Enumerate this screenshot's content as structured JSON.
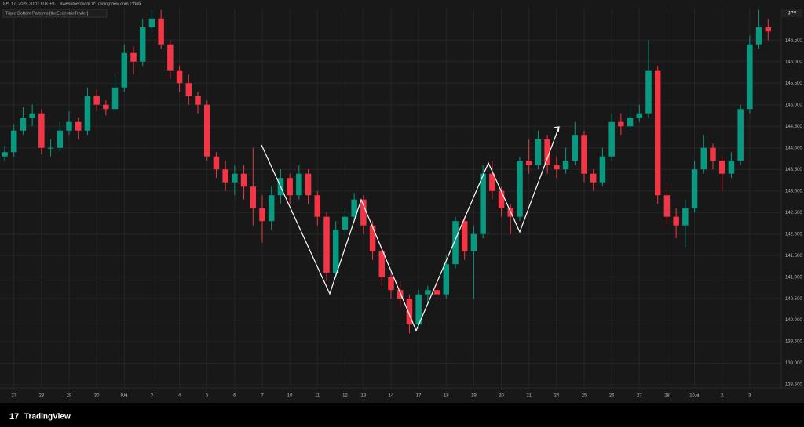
{
  "chart_data": {
    "type": "candlestick",
    "header": "8月 17, 2025 20:11 UTC+9、 awesomefoxcat がTradingView.comで作成",
    "indicator": "Triple Bottom Patterns [theEccentricTrader]",
    "currency": "JPY",
    "brand": "TradingView",
    "up_color": "#089981",
    "down_color": "#f23645",
    "grid": true,
    "categories": [
      null,
      "27",
      null,
      null,
      "28",
      null,
      null,
      "29",
      null,
      null,
      "30",
      null,
      null,
      "9月",
      null,
      null,
      "3",
      null,
      null,
      "4",
      null,
      null,
      "5",
      null,
      null,
      "6",
      null,
      null,
      "7",
      null,
      null,
      "10",
      null,
      null,
      "11",
      null,
      null,
      "12",
      null,
      "13",
      null,
      null,
      "14",
      null,
      null,
      "17",
      null,
      null,
      "18",
      null,
      null,
      "19",
      null,
      null,
      "20",
      null,
      null,
      "21",
      null,
      null,
      "24",
      null,
      null,
      "25",
      null,
      null,
      "26",
      null,
      null,
      "27",
      null,
      null,
      "28",
      null,
      null,
      "10月",
      null,
      null,
      "2",
      null,
      null,
      "3",
      null,
      null
    ],
    "open": [
      143.8,
      143.9,
      144.4,
      144.7,
      144.8,
      144.0,
      144.0,
      144.4,
      144.6,
      144.4,
      145.2,
      145.0,
      144.9,
      145.4,
      146.2,
      146.0,
      146.8,
      147.0,
      146.4,
      145.8,
      145.5,
      145.2,
      145.0,
      143.8,
      143.5,
      143.2,
      143.4,
      143.1,
      142.6,
      142.3,
      142.9,
      143.3,
      142.9,
      143.4,
      142.9,
      142.4,
      141.1,
      142.1,
      142.4,
      142.8,
      142.2,
      141.6,
      141.0,
      140.7,
      140.5,
      139.9,
      140.6,
      140.7,
      140.6,
      141.3,
      142.3,
      141.6,
      142.0,
      143.4,
      143.0,
      142.6,
      142.4,
      143.7,
      143.6,
      144.2,
      143.6,
      143.5,
      143.7,
      144.3,
      143.4,
      143.2,
      143.8,
      144.6,
      144.5,
      144.7,
      144.8,
      145.8,
      142.9,
      142.4,
      142.2,
      142.6,
      143.5,
      144.0,
      143.7,
      143.4,
      143.7,
      144.9,
      146.4,
      146.8
    ],
    "high": [
      144.05,
      144.55,
      144.95,
      145.0,
      144.9,
      144.2,
      144.6,
      144.85,
      144.7,
      145.4,
      145.35,
      145.1,
      145.7,
      146.4,
      146.35,
      147.0,
      147.2,
      147.2,
      146.5,
      145.9,
      145.7,
      145.3,
      145.1,
      143.9,
      143.7,
      143.6,
      143.6,
      144.0,
      142.9,
      143.1,
      143.5,
      143.4,
      143.6,
      143.5,
      143.0,
      142.5,
      142.3,
      142.6,
      142.95,
      142.9,
      142.3,
      141.7,
      141.1,
      140.9,
      140.6,
      140.7,
      140.8,
      140.9,
      141.5,
      142.4,
      142.4,
      142.2,
      143.6,
      143.7,
      143.1,
      142.7,
      143.8,
      144.2,
      144.4,
      144.3,
      143.8,
      144.0,
      144.6,
      144.4,
      143.5,
      144.0,
      144.8,
      144.8,
      145.1,
      145.0,
      146.5,
      145.9,
      143.1,
      142.6,
      142.8,
      143.7,
      144.3,
      144.1,
      143.8,
      143.9,
      145.0,
      146.6,
      147.2,
      147.0
    ],
    "low": [
      143.7,
      143.8,
      144.3,
      144.5,
      143.85,
      143.8,
      143.9,
      144.3,
      144.2,
      144.3,
      144.85,
      144.75,
      144.8,
      145.3,
      145.7,
      145.9,
      146.6,
      146.3,
      145.6,
      145.3,
      145.0,
      144.8,
      143.7,
      143.3,
      143.0,
      142.9,
      142.8,
      142.2,
      141.8,
      142.1,
      142.7,
      142.7,
      142.8,
      142.7,
      142.2,
      140.9,
      141.0,
      141.9,
      142.3,
      142.0,
      141.4,
      140.8,
      140.5,
      140.3,
      139.7,
      139.8,
      140.4,
      140.5,
      140.5,
      141.2,
      141.4,
      140.5,
      141.9,
      142.8,
      142.4,
      142.0,
      142.3,
      143.4,
      143.5,
      143.4,
      143.3,
      143.4,
      143.6,
      143.2,
      143.0,
      143.1,
      143.7,
      144.3,
      144.4,
      144.6,
      144.7,
      142.7,
      142.2,
      141.9,
      141.7,
      142.5,
      143.4,
      143.5,
      143.0,
      143.3,
      143.6,
      144.8,
      146.3,
      146.5
    ],
    "close": [
      143.9,
      144.4,
      144.7,
      144.8,
      144.0,
      144.0,
      144.4,
      144.6,
      144.4,
      145.2,
      145.0,
      144.9,
      145.4,
      146.2,
      146.0,
      146.8,
      147.0,
      146.4,
      145.8,
      145.5,
      145.2,
      145.0,
      143.8,
      143.5,
      143.2,
      143.4,
      143.1,
      142.6,
      142.3,
      142.9,
      143.3,
      142.9,
      143.4,
      142.9,
      142.4,
      141.1,
      142.1,
      142.4,
      142.8,
      142.2,
      141.6,
      141.0,
      140.7,
      140.5,
      139.9,
      140.6,
      140.7,
      140.6,
      141.3,
      142.3,
      141.6,
      142.0,
      143.4,
      143.0,
      142.6,
      142.4,
      143.7,
      143.6,
      144.2,
      143.6,
      143.5,
      143.7,
      144.3,
      143.4,
      143.2,
      143.8,
      144.6,
      144.5,
      144.7,
      144.8,
      145.8,
      142.9,
      142.4,
      142.2,
      142.6,
      143.5,
      144.0,
      143.7,
      143.4,
      143.7,
      144.9,
      146.4,
      146.8,
      146.7
    ],
    "ylim": [
      138.43,
      147.25
    ],
    "yticks": [
      {
        "value": 138.5,
        "label": "138.500"
      },
      {
        "value": 139,
        "label": "139.000"
      },
      {
        "value": 139.5,
        "label": "139.500"
      },
      {
        "value": 140,
        "label": "140.000"
      },
      {
        "value": 140.5,
        "label": "140.500"
      },
      {
        "value": 141,
        "label": "141.000"
      },
      {
        "value": 141.5,
        "label": "141.500"
      },
      {
        "value": 142,
        "label": "142.000"
      },
      {
        "value": 142.5,
        "label": "142.500"
      },
      {
        "value": 143,
        "label": "143.000"
      },
      {
        "value": 143.5,
        "label": "143.500"
      },
      {
        "value": 144,
        "label": "144.000"
      },
      {
        "value": 144.5,
        "label": "144.500"
      },
      {
        "value": 145,
        "label": "145.000"
      },
      {
        "value": 145.5,
        "label": "145.500"
      },
      {
        "value": 146,
        "label": "146.000"
      },
      {
        "value": 146.5,
        "label": "146.500"
      }
    ]
  }
}
